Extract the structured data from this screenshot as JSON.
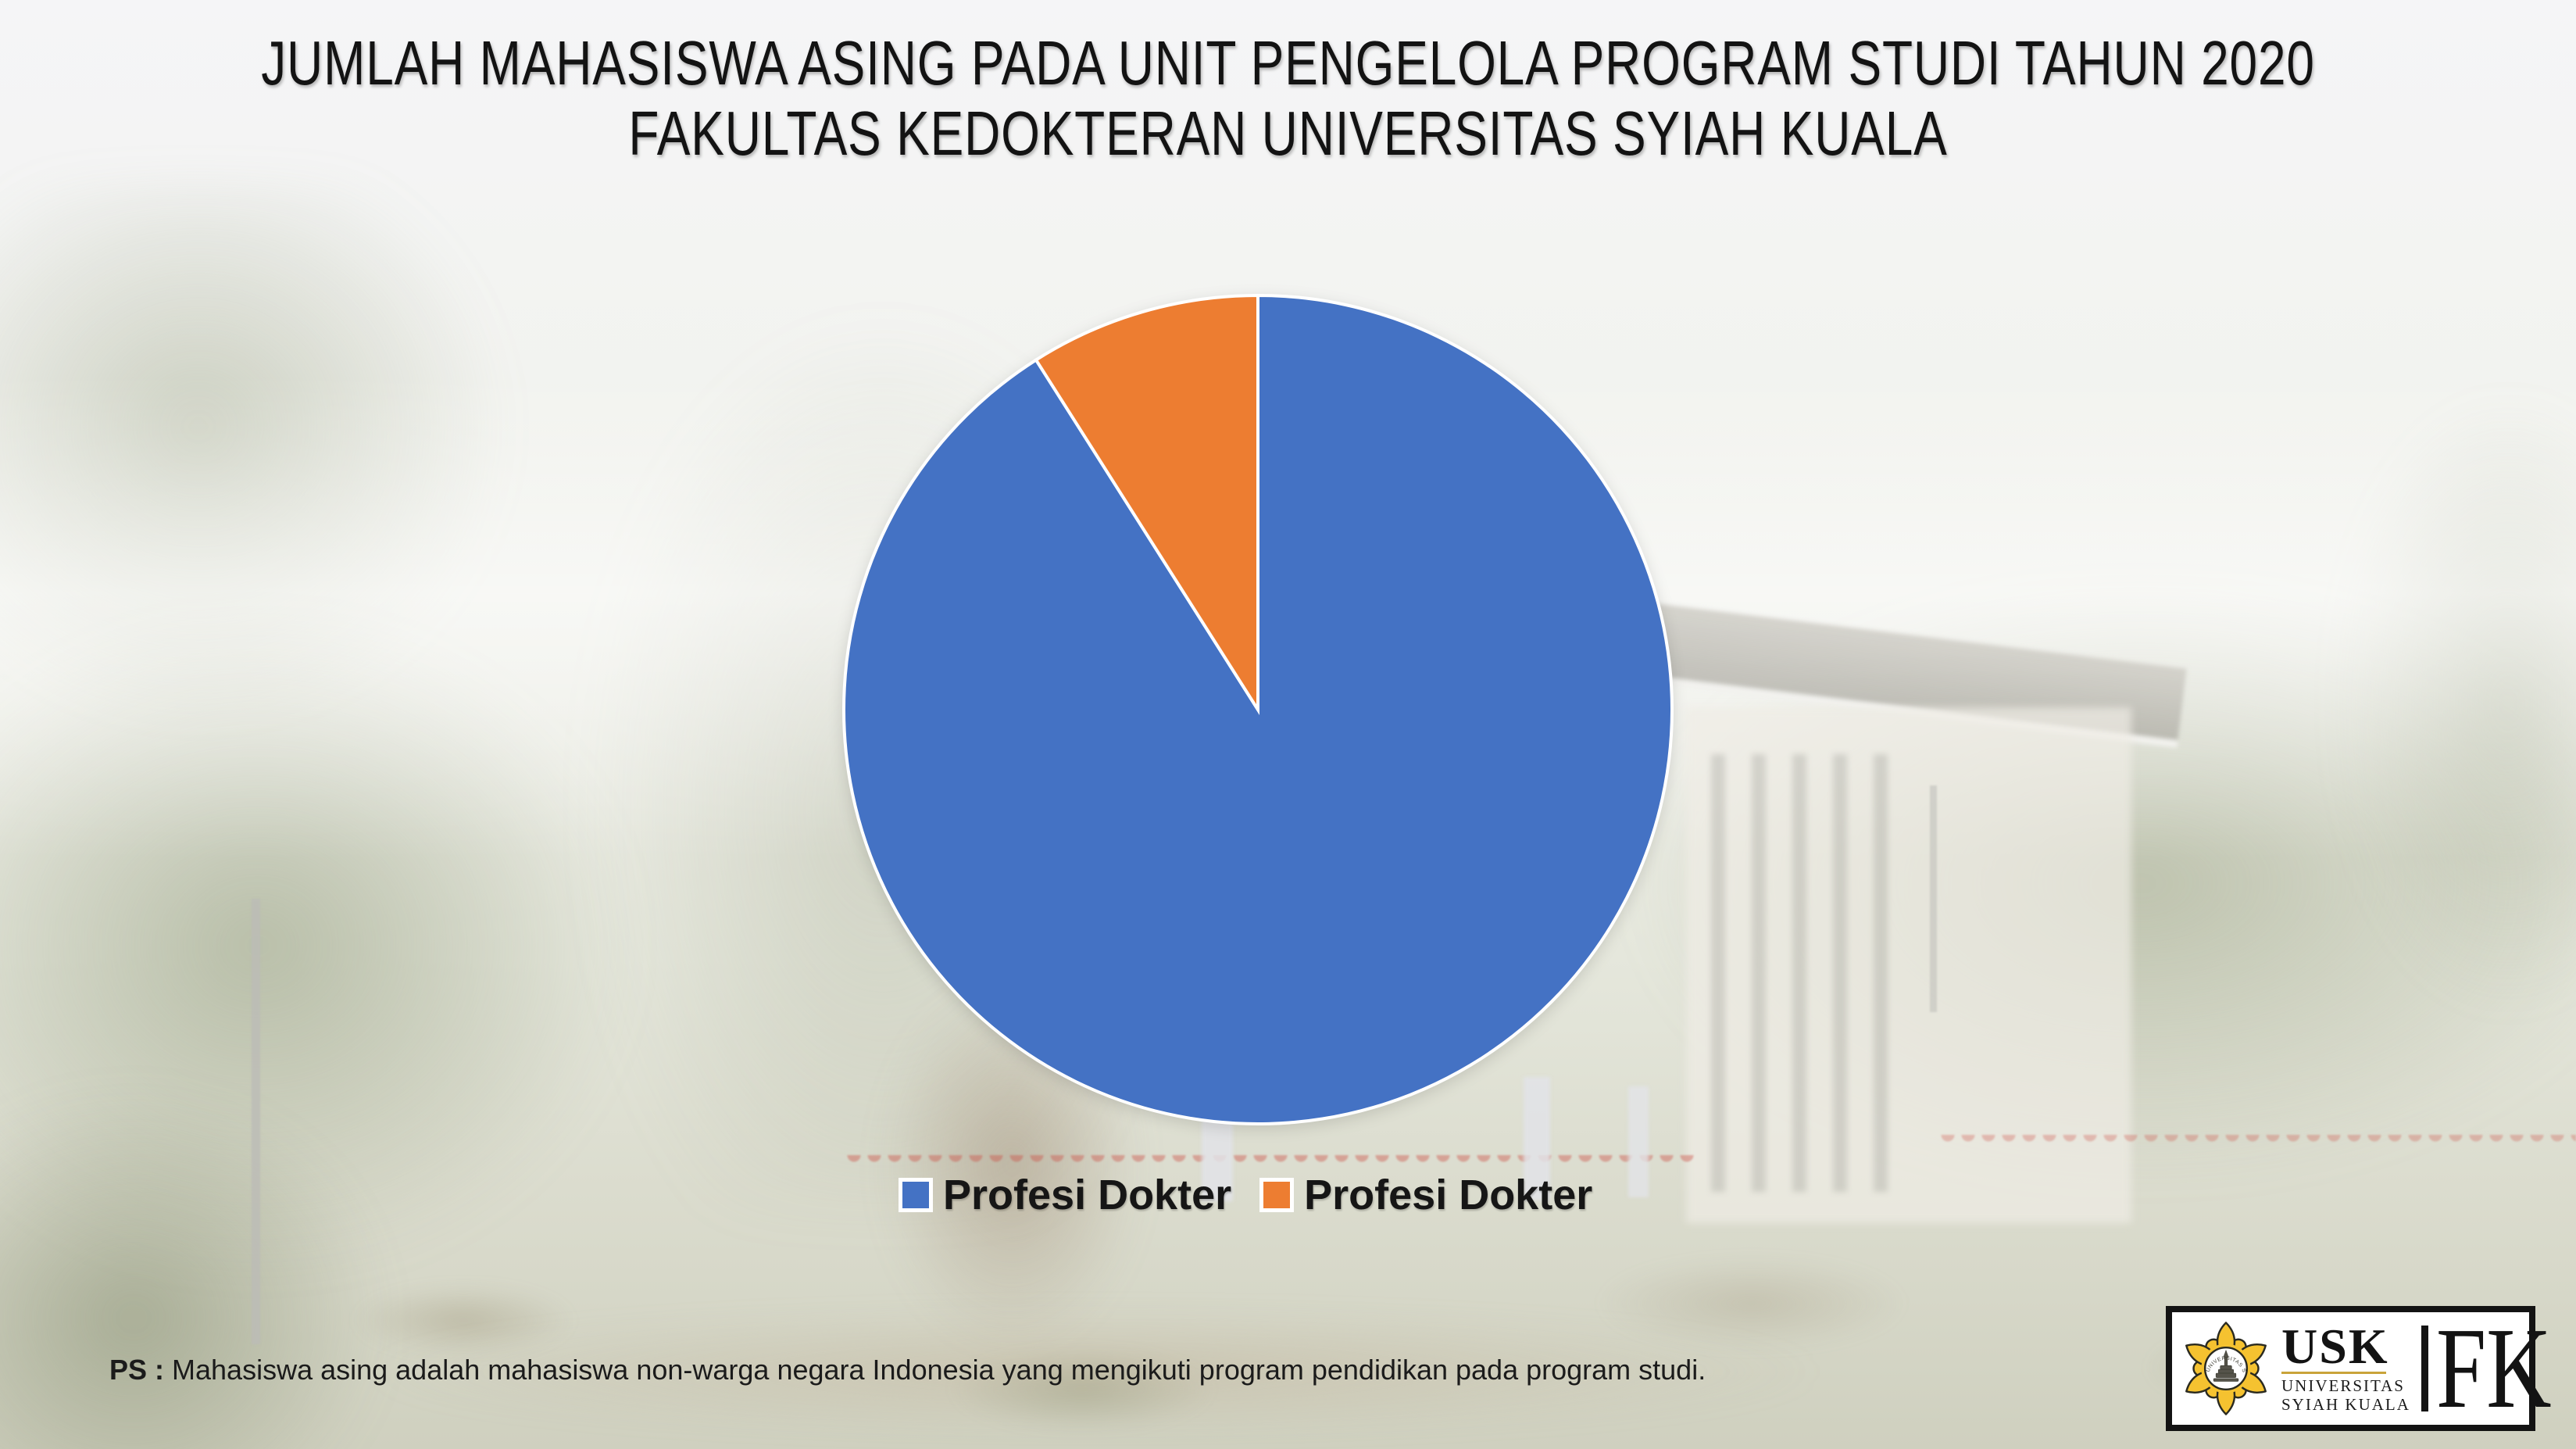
{
  "slide": {
    "title_line1": "JUMLAH MAHASISWA ASING PADA UNIT PENGELOLA PROGRAM STUDI TAHUN 2020",
    "title_line2": "FAKULTAS KEDOKTERAN UNIVERSITAS SYIAH KUALA",
    "footnote": {
      "prefix": "PS :",
      "text": "Mahasiswa asing adalah mahasiswa non-warga negara Indonesia yang mengikuti program pendidikan pada program studi."
    }
  },
  "chart_data": {
    "type": "pie",
    "title": "JUMLAH MAHASISWA ASING PADA UNIT PENGELOLA PROGRAM STUDI TAHUN 2020 FAKULTAS KEDOKTERAN UNIVERSITAS SYIAH KUALA",
    "slices": [
      {
        "label": "Profesi Dokter",
        "value": 91,
        "color": "#4472C4"
      },
      {
        "label": "Profesi Dokter",
        "value": 9,
        "color": "#ED7D31"
      }
    ],
    "data_labels": false,
    "legend_position": "bottom",
    "start_angle_deg": 0,
    "direction": "clockwise",
    "slice_border_color": "#FFFFFF"
  },
  "logo": {
    "acronym": "USK",
    "university_line1": "UNIVERSITAS",
    "university_line2": "SYIAH KUALA",
    "faculty": "FK",
    "emblem_color": "#F5C230"
  },
  "colors": {
    "slice_blue": "#4472C4",
    "slice_orange": "#ED7D31",
    "title_text": "#131313",
    "background_top": "#F5F5F7",
    "background_bottom": "#CFD0BF"
  }
}
